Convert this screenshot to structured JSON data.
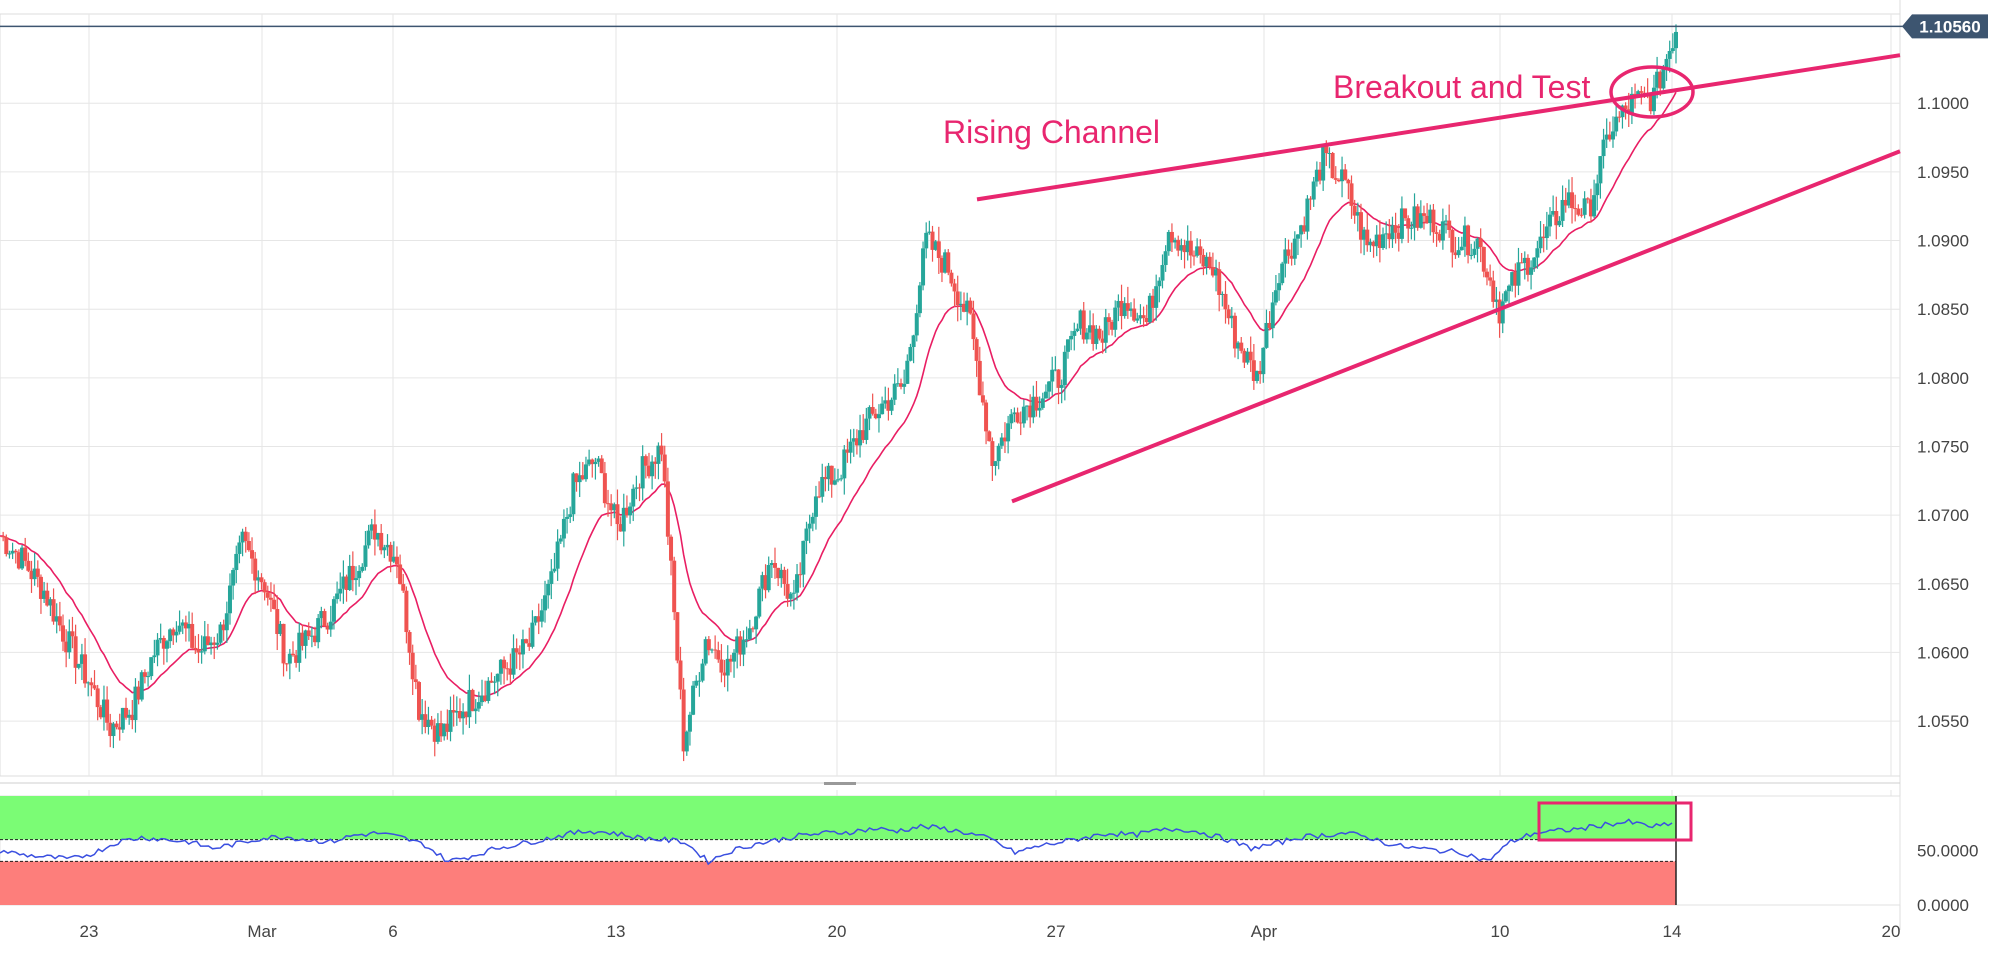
{
  "chart_data": [
    {
      "type": "candlestick",
      "title": "",
      "x_tick_labels": [
        "23",
        "Mar",
        "6",
        "13",
        "20",
        "27",
        "Apr",
        "10",
        "14",
        "20"
      ],
      "y_ticks": [
        "1.0550",
        "1.0600",
        "1.0650",
        "1.0700",
        "1.0750",
        "1.0800",
        "1.0850",
        "1.0900",
        "1.0950",
        "1.1000"
      ],
      "ylim": [
        1.051,
        1.1065
      ],
      "current_price": "1.10560",
      "grid": true,
      "price_path": [
        1.0685,
        1.0668,
        1.0645,
        1.061,
        1.058,
        1.0545,
        1.056,
        1.06,
        1.0625,
        1.06,
        1.0615,
        1.068,
        1.065,
        1.0595,
        1.061,
        1.063,
        1.066,
        1.069,
        1.067,
        1.056,
        1.054,
        1.056,
        1.0575,
        1.059,
        1.0605,
        1.065,
        1.072,
        1.074,
        1.069,
        1.073,
        1.075,
        1.0535,
        1.061,
        1.059,
        1.062,
        1.067,
        1.0635,
        1.072,
        1.073,
        1.076,
        1.078,
        1.0795,
        1.09,
        1.088,
        1.084,
        1.074,
        1.0775,
        1.0785,
        1.08,
        1.084,
        1.083,
        1.086,
        1.084,
        1.091,
        1.089,
        1.088,
        1.083,
        1.08,
        1.088,
        1.091,
        1.096,
        1.094,
        1.0895,
        1.091,
        1.0915,
        1.0915,
        1.09,
        1.09,
        1.085,
        1.088,
        1.09,
        1.093,
        1.092,
        1.098,
        1.1,
        1.1005,
        1.1055
      ],
      "moving_average": true,
      "annotations": [
        {
          "type": "text",
          "text": "Rising Channel"
        },
        {
          "type": "text",
          "text": "Breakout and Test"
        },
        {
          "type": "trendline",
          "name": "upper channel line",
          "from": [
            "Mar 23",
            1.093
          ],
          "to": [
            "Apr 20",
            1.1035
          ]
        },
        {
          "type": "trendline",
          "name": "lower channel line",
          "from": [
            "Mar 24",
            1.071
          ],
          "to": [
            "Apr 20",
            1.0965
          ]
        },
        {
          "type": "ellipse",
          "name": "breakout circle"
        }
      ],
      "colors": {
        "up": "#26a69a",
        "down": "#ef5350",
        "moving_average": "#e91e63",
        "annotation": "#e8266f",
        "price_tag": "#3d5570"
      }
    },
    {
      "type": "line",
      "title": "",
      "y_ticks": [
        "50.0000",
        "0.0000"
      ],
      "ylim": [
        0,
        100
      ],
      "zones": [
        {
          "from": 60,
          "to": 100,
          "color": "#7bfc75"
        },
        {
          "from": 0,
          "to": 40,
          "color": "#fd7e7b"
        }
      ],
      "values": [
        50,
        46,
        44,
        42,
        48,
        58,
        62,
        60,
        58,
        52,
        56,
        61,
        63,
        60,
        58,
        64,
        66,
        62,
        55,
        40,
        45,
        52,
        56,
        60,
        65,
        68,
        66,
        62,
        60,
        58,
        40,
        50,
        56,
        60,
        64,
        66,
        67,
        70,
        68,
        72,
        70,
        66,
        60,
        48,
        54,
        58,
        62,
        66,
        64,
        68,
        70,
        66,
        60,
        52,
        56,
        62,
        64,
        66,
        62,
        55,
        52,
        50,
        48,
        40,
        58,
        66,
        68,
        70,
        74,
        76,
        72,
        74
      ],
      "colors": {
        "line": "#3a4fe0",
        "highlight_box": "#e8266f"
      }
    }
  ]
}
